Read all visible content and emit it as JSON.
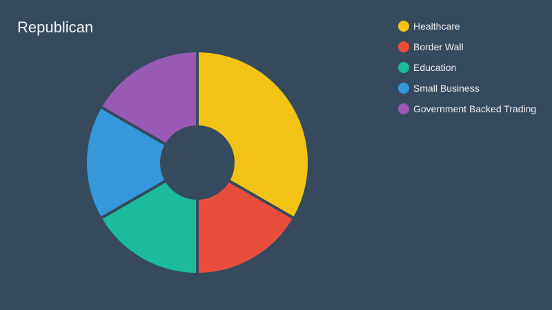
{
  "chart_data": {
    "type": "pie",
    "title": "Republican",
    "donut": true,
    "background": "#364a5e",
    "legend_position": "top-right",
    "categories": [
      "Healthcare",
      "Border Wall",
      "Education",
      "Small Business",
      "Government Backed Trading"
    ],
    "values": [
      2,
      1,
      1,
      1,
      1
    ],
    "colors": [
      "#f2c314",
      "#e94e3c",
      "#1abc9c",
      "#3498db",
      "#9b59b6"
    ]
  }
}
